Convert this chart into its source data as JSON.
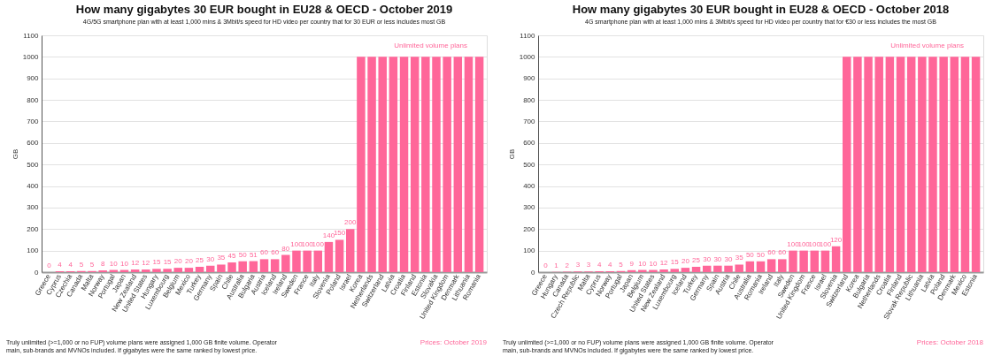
{
  "chart_data": [
    {
      "type": "bar",
      "title": "How many gigabytes 30 EUR bought in EU28 & OECD - October 2019",
      "subtitle": "4G/5G smartphone plan with at least 1,000 mins & 3Mbit/s speed for HD video per country that for 30 EUR or less includes most GB",
      "ylabel": "GB",
      "categories": [
        "Greece",
        "Cyprus",
        "Czechia",
        "Canada",
        "Malta",
        "Norway",
        "Portugal",
        "Japan",
        "New Zealand",
        "United States",
        "Hungary",
        "Luxembourg",
        "Belgium",
        "Mexico",
        "Turkey",
        "Germany",
        "Spain",
        "Chile",
        "Australia",
        "Bulgaria",
        "Austria",
        "Iceland",
        "Ireland",
        "Sweden",
        "France",
        "Italy",
        "Slovenia",
        "Poland",
        "Israel",
        "Korea",
        "Netherlands",
        "Switzerland",
        "Latvia",
        "Croatia",
        "Finland",
        "Estonia",
        "Slovakia",
        "United Kingdom",
        "Denmark",
        "Lithuania",
        "Romania"
      ],
      "values": [
        0,
        4,
        4,
        5,
        5,
        8,
        10,
        10,
        12,
        12,
        15,
        15,
        20,
        20,
        25,
        30,
        35,
        45,
        50,
        51,
        60,
        60,
        80,
        100,
        100,
        100,
        140,
        150,
        200,
        1000,
        1000,
        1000,
        1000,
        1000,
        1000,
        1000,
        1000,
        1000,
        1000,
        1000,
        1000
      ],
      "value_labels": [
        "0",
        "4",
        "4",
        "5",
        "5",
        "8",
        "10",
        "10",
        "12",
        "12",
        "15",
        "15",
        "20",
        "20",
        "25",
        "30",
        "35",
        "45",
        "50",
        "51",
        "60",
        "60",
        "80",
        "100",
        "100",
        "100",
        "140",
        "150",
        "200",
        null,
        null,
        null,
        null,
        null,
        null,
        null,
        null,
        null,
        null,
        null,
        null
      ],
      "color": "#ff6699",
      "ylim": [
        0,
        1100
      ],
      "yticks": [
        0,
        100,
        200,
        300,
        400,
        500,
        600,
        700,
        800,
        900,
        1000,
        1100
      ],
      "grid": "y",
      "annotations": [
        "Unlimited volume plans",
        "Truly unlimited (>=1,000 or no FUP) volume plans were assigned 1,000 GB finite volume. Operator main, sub-brands and MVNOs included. If gigabytes were the same ranked by lowest price.",
        "Prices: October 2019"
      ]
    },
    {
      "type": "bar",
      "title": "How many gigabytes 30 EUR bought in EU28 & OECD - October 2018",
      "subtitle": "4G smartphone plan with at least 1,000 mins & 3Mbit/s speed for HD video per country that for €30 or less includes the most GB",
      "ylabel": "GB",
      "categories": [
        "Greece",
        "Hungary",
        "Canada",
        "Czech Republic",
        "Malta",
        "Cyprus",
        "Norway",
        "Portugal",
        "Japan",
        "Belgium",
        "United States",
        "New Zealand",
        "Luxembourg",
        "Iceland",
        "Turkey",
        "Germany",
        "Spain",
        "Austria",
        "Chile",
        "Australia",
        "Romania",
        "Ireland",
        "Italy",
        "Sweden",
        "United Kingdom",
        "France",
        "Israel",
        "Slovenia",
        "Switzerland",
        "Korea",
        "Bulgaria",
        "Netherlands",
        "Croatia",
        "Finland",
        "Slovak Republic",
        "Lithuania",
        "Latvia",
        "Poland",
        "Denmark",
        "Mexico",
        "Estonia"
      ],
      "values": [
        0,
        1,
        2,
        3,
        3,
        4,
        4,
        5,
        9,
        10,
        10,
        12,
        15,
        20,
        25,
        30,
        30,
        30,
        35,
        50,
        50,
        60,
        60,
        100,
        100,
        100,
        100,
        120,
        1000,
        1000,
        1000,
        1000,
        1000,
        1000,
        1000,
        1000,
        1000,
        1000,
        1000,
        1000,
        1000
      ],
      "value_labels": [
        "0",
        "1",
        "2",
        "3",
        "3",
        "4",
        "4",
        "5",
        "9",
        "10",
        "10",
        "12",
        "15",
        "20",
        "25",
        "30",
        "30",
        "30",
        "35",
        "50",
        "50",
        "60",
        "60",
        "100",
        "100",
        "100",
        "100",
        "120",
        null,
        null,
        null,
        null,
        null,
        null,
        null,
        null,
        null,
        null,
        null,
        null,
        null
      ],
      "color": "#ff6699",
      "ylim": [
        0,
        1100
      ],
      "yticks": [
        0,
        100,
        200,
        300,
        400,
        500,
        600,
        700,
        800,
        900,
        1000,
        1100
      ],
      "grid": "y",
      "annotations": [
        "Unlimited volume plans",
        "Truly unlimited (>=1,000 or no FUP) volume plans were assigned 1,000 GB finite volume. Operator main, sub-brands and MVNOs included. If gigabytes were the same ranked by lowest price.",
        "Prices: October 2018"
      ]
    }
  ]
}
